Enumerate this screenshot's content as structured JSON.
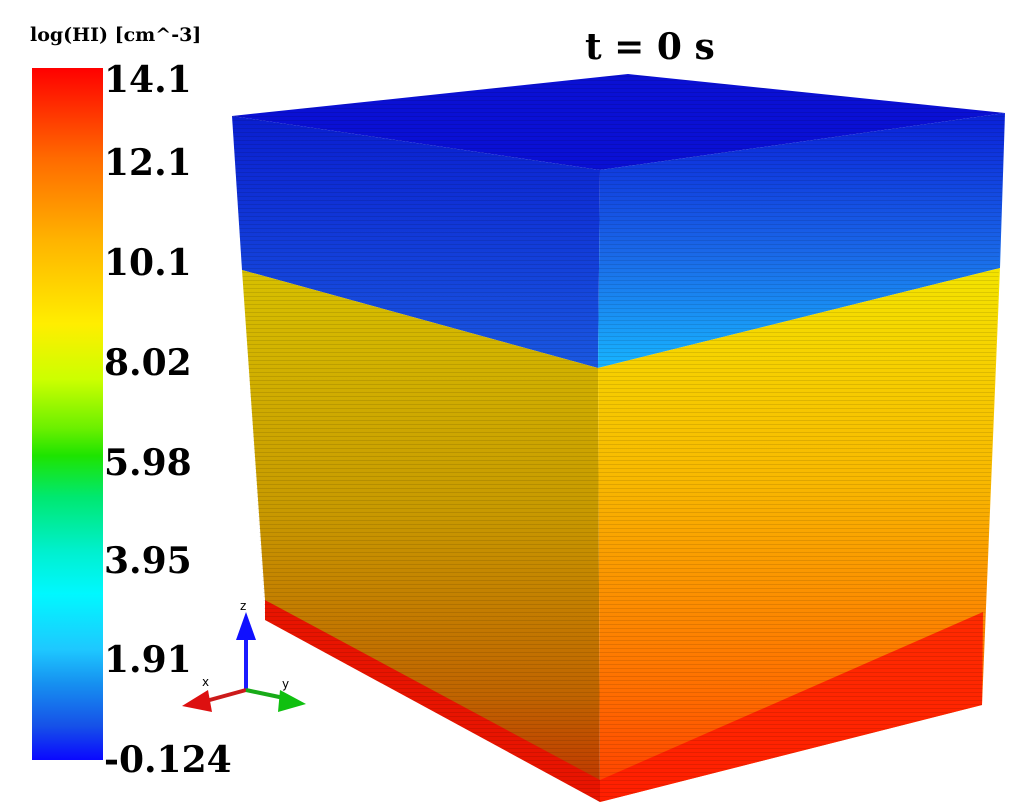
{
  "colorbar": {
    "title": "log(HI) [cm^-3]",
    "ticks": [
      "14.1",
      "12.1",
      "10.1",
      "8.02",
      "5.98",
      "3.95",
      "1.91",
      "-0.124"
    ]
  },
  "time_label": "t = 0 s",
  "orientation_axes": {
    "x_label": "x",
    "y_label": "y",
    "z_label": "z"
  },
  "colors": {
    "top_face": "#0a12d8",
    "upper_band": "#1648d8",
    "lower_band": "#d2b400",
    "bottom_band": "#ff1a00"
  }
}
